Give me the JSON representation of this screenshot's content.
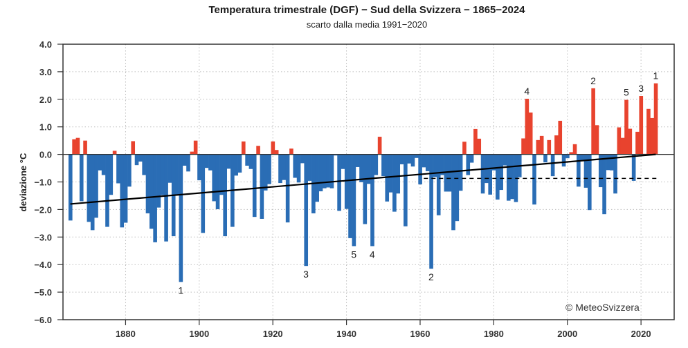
{
  "chart_data": {
    "type": "bar",
    "title": "Temperatura trimestrale (DGF) − Sud della Svizzera − 1865−2024",
    "subtitle": "scarto dalla media 1991−2020",
    "xlabel": "",
    "ylabel": "deviazione °C",
    "xlim": [
      1863,
      2029
    ],
    "ylim": [
      -6.0,
      4.0
    ],
    "xticks": [
      1880,
      1900,
      1920,
      1940,
      1960,
      1980,
      2000,
      2020
    ],
    "yticks": [
      "4.0",
      "3.0",
      "2.0",
      "1.0",
      "0.0",
      "−1.0",
      "−2.0",
      "−3.0",
      "−4.0",
      "−5.0",
      "−6.0"
    ],
    "ytick_values": [
      4,
      3,
      2,
      1,
      0,
      -1,
      -2,
      -3,
      -4,
      -5,
      -6
    ],
    "grid": "dotted",
    "colors": {
      "positive": "#e8432e",
      "negative": "#2a6db5",
      "trend": "#000000",
      "reference": "#000000"
    },
    "start_year": 1865,
    "values": [
      -2.4,
      0.55,
      0.6,
      -1.7,
      0.5,
      -2.45,
      -2.75,
      -2.3,
      -0.58,
      -0.75,
      -2.63,
      -1.47,
      0.13,
      -1.05,
      -2.65,
      -2.48,
      -1.17,
      0.48,
      -0.39,
      -0.26,
      -0.75,
      -2.14,
      -2.7,
      -3.19,
      -1.93,
      -1.48,
      -3.16,
      -1.03,
      -2.97,
      -1.45,
      -4.63,
      -0.41,
      -0.62,
      0.1,
      0.5,
      -0.94,
      -2.85,
      -0.49,
      -0.58,
      -1.7,
      -1.99,
      -1.47,
      -2.97,
      -0.52,
      -2.63,
      -0.77,
      -0.66,
      0.47,
      -0.41,
      -0.53,
      -2.27,
      0.31,
      -2.34,
      -1.31,
      -1.08,
      0.47,
      0.16,
      -1.04,
      -0.93,
      -2.47,
      0.21,
      -0.85,
      -1.02,
      -0.32,
      -4.05,
      -0.96,
      -2.14,
      -1.72,
      -1.34,
      -1.23,
      -1.2,
      -1.23,
      -0.04,
      -2.05,
      -0.53,
      -1.98,
      -3.04,
      -3.33,
      -0.46,
      -1.01,
      -2.53,
      -1.07,
      -3.33,
      -0.75,
      0.64,
      -0.79,
      -1.71,
      -1.38,
      -2.08,
      -1.42,
      -0.36,
      -2.61,
      -0.33,
      -0.44,
      -0.13,
      -1.09,
      -0.47,
      -0.61,
      -4.15,
      -0.82,
      -2.21,
      -0.75,
      -1.35,
      -1.35,
      -2.75,
      -2.42,
      -1.32,
      0.46,
      -0.75,
      -0.3,
      0.92,
      0.57,
      -1.42,
      -1.04,
      -1.46,
      -0.58,
      -1.64,
      -1.29,
      -0.4,
      -1.68,
      -1.62,
      -1.73,
      -0.83,
      0.58,
      2.02,
      1.52,
      -1.82,
      0.52,
      0.67,
      -0.29,
      0.52,
      -0.79,
      0.69,
      1.22,
      -0.44,
      -0.14,
      0.08,
      0.37,
      -1.17,
      -0.25,
      -1.21,
      -2.02,
      2.4,
      1.06,
      -1.19,
      -2.17,
      -0.57,
      -0.58,
      -1.42,
      0.98,
      0.6,
      1.98,
      0.93,
      -0.96,
      0.82,
      2.12,
      0.02,
      1.65,
      1.32,
      2.58
    ],
    "trend": {
      "start": {
        "year": 1865,
        "value": -1.8
      },
      "end": {
        "year": 2024,
        "value": 0.0
      }
    },
    "reference_line": {
      "from_year": 1961,
      "to_year": 2024,
      "value": -0.87,
      "style": "dashed"
    },
    "annotations": [
      {
        "label": "1",
        "year": 2024,
        "position": "above",
        "color": "#222222"
      },
      {
        "label": "2",
        "year": 2007,
        "position": "above",
        "color": "#c2448a"
      },
      {
        "label": "3",
        "year": 2020,
        "position": "above",
        "color": "#222222"
      },
      {
        "label": "4",
        "year": 1989,
        "position": "above",
        "color": "#222222"
      },
      {
        "label": "5",
        "year": 2016,
        "position": "above",
        "color": "#222222"
      },
      {
        "label": "1",
        "year": 1895,
        "position": "below",
        "color": "#222222"
      },
      {
        "label": "2",
        "year": 1963,
        "position": "below",
        "color": "#222222"
      },
      {
        "label": "3",
        "year": 1929,
        "position": "below",
        "color": "#222222"
      },
      {
        "label": "4",
        "year": 1947,
        "position": "below",
        "color": "#222222"
      },
      {
        "label": "5",
        "year": 1942,
        "position": "below",
        "color": "#222222"
      }
    ],
    "credit": "© MeteoSvizzera"
  }
}
